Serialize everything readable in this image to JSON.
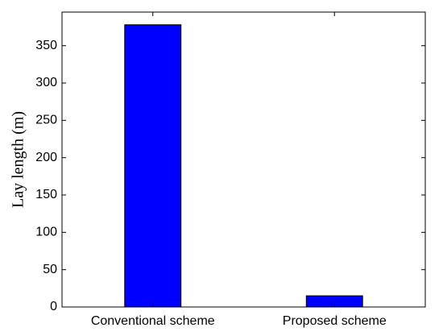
{
  "chart_data": {
    "type": "bar",
    "y_label": "Lay length (m)",
    "categories": [
      "Conventional scheme",
      "Proposed scheme"
    ],
    "values": [
      378,
      15
    ],
    "color": "#0000ff",
    "ylim": [
      0,
      395
    ],
    "yticks": [
      0,
      50,
      100,
      150,
      200,
      250,
      300,
      350
    ]
  }
}
